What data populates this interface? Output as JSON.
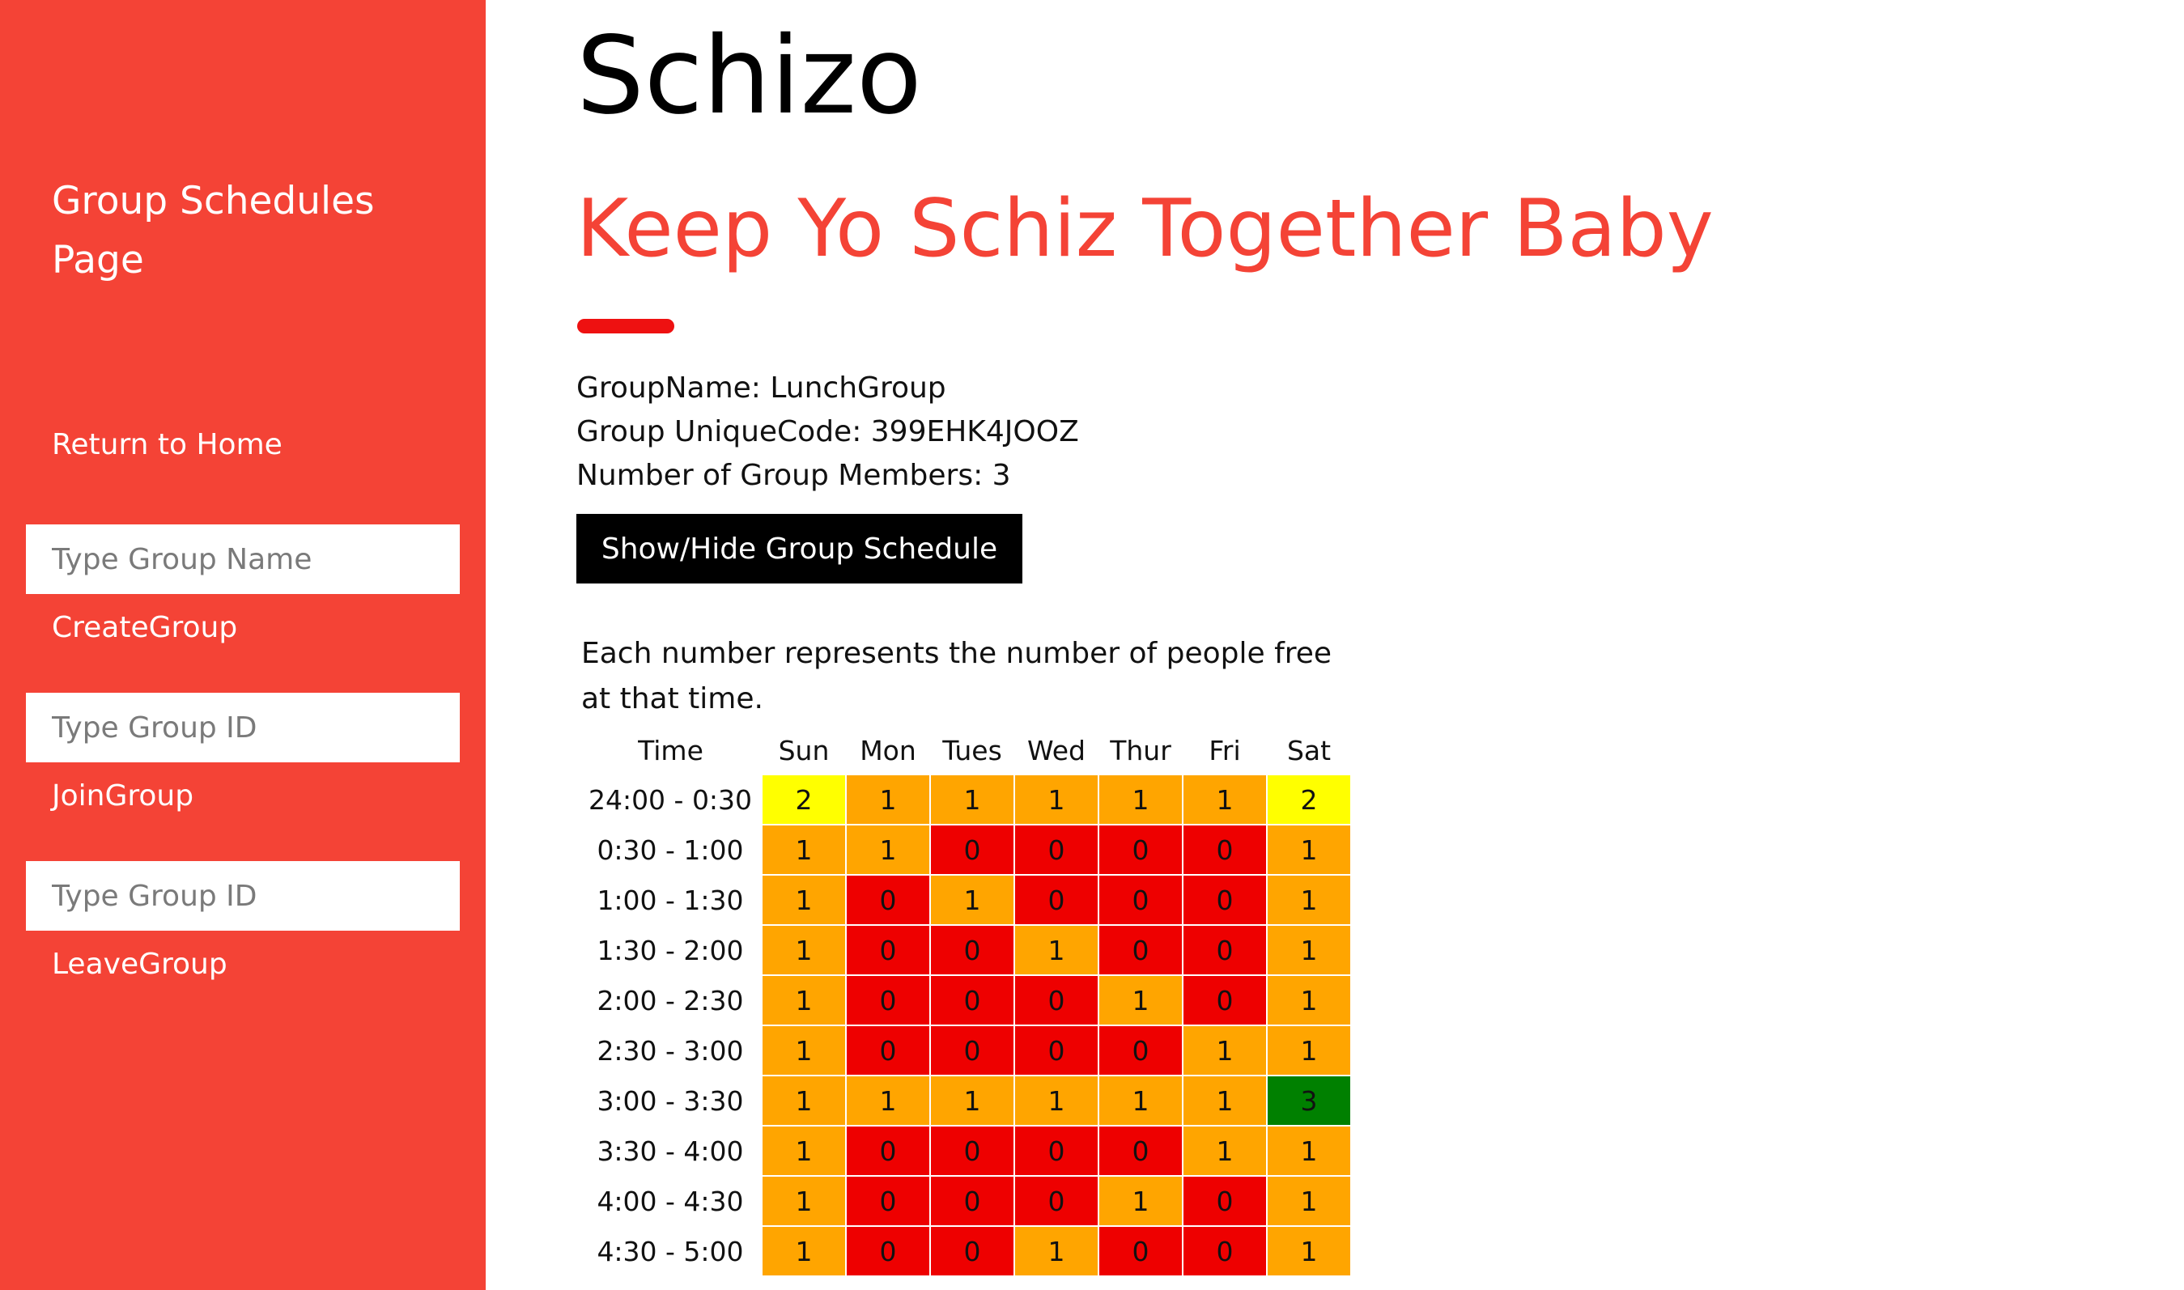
{
  "sidebar": {
    "brand": "Group Schedules Page",
    "home_link": "Return to Home",
    "create": {
      "placeholder": "Type Group Name",
      "link": "CreateGroup"
    },
    "join": {
      "placeholder": "Type Group ID",
      "link": "JoinGroup"
    },
    "leave": {
      "placeholder": "Type Group ID",
      "link": "LeaveGroup"
    }
  },
  "header": {
    "title": "Schizo",
    "tagline": "Keep Yo Schiz Together Baby"
  },
  "group": {
    "name_line": "GroupName: LunchGroup",
    "code_line": "Group UniqueCode: 399EHK4JOOZ",
    "members_line": "Number of Group Members: 3"
  },
  "toggle_button": "Show/Hide Group Schedule",
  "schedule": {
    "caption": "Each number represents the number of people free at that time.",
    "time_header": "Time",
    "days": [
      "Sun",
      "Mon",
      "Tues",
      "Wed",
      "Thur",
      "Fri",
      "Sat"
    ],
    "colors": {
      "0": "#ee0000",
      "1": "#ffa500",
      "2": "#ffff00",
      "3": "#008000"
    },
    "rows": [
      {
        "time": "24:00 - 0:30",
        "values": [
          2,
          1,
          1,
          1,
          1,
          1,
          2
        ]
      },
      {
        "time": "0:30 - 1:00",
        "values": [
          1,
          1,
          0,
          0,
          0,
          0,
          1
        ]
      },
      {
        "time": "1:00 - 1:30",
        "values": [
          1,
          0,
          1,
          0,
          0,
          0,
          1
        ]
      },
      {
        "time": "1:30 - 2:00",
        "values": [
          1,
          0,
          0,
          1,
          0,
          0,
          1
        ]
      },
      {
        "time": "2:00 - 2:30",
        "values": [
          1,
          0,
          0,
          0,
          1,
          0,
          1
        ]
      },
      {
        "time": "2:30 - 3:00",
        "values": [
          1,
          0,
          0,
          0,
          0,
          1,
          1
        ]
      },
      {
        "time": "3:00 - 3:30",
        "values": [
          1,
          1,
          1,
          1,
          1,
          1,
          3
        ]
      },
      {
        "time": "3:30 - 4:00",
        "values": [
          1,
          0,
          0,
          0,
          0,
          1,
          1
        ]
      },
      {
        "time": "4:00 - 4:30",
        "values": [
          1,
          0,
          0,
          0,
          1,
          0,
          1
        ]
      },
      {
        "time": "4:30 - 5:00",
        "values": [
          1,
          0,
          0,
          1,
          0,
          0,
          1
        ]
      }
    ]
  }
}
